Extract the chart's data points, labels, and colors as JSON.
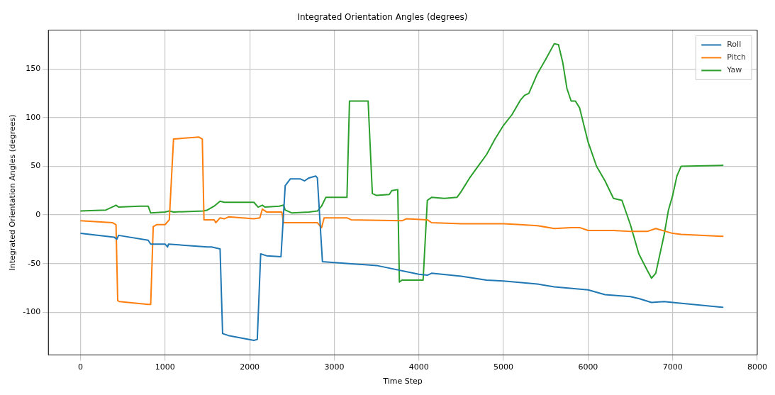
{
  "chart_data": {
    "type": "line",
    "title": "Integrated Orientation Angles (degrees)",
    "xlabel": "Time Step",
    "ylabel": "Integrated Orientation Angles (degrees)",
    "xlim": [
      -380,
      8000
    ],
    "xticks": [
      0,
      1000,
      2000,
      3000,
      4000,
      5000,
      6000,
      7000,
      8000
    ],
    "ylim": [
      -144,
      190
    ],
    "yticks": [
      -100,
      -50,
      0,
      50,
      100,
      150
    ],
    "grid": true,
    "legend": "top right",
    "marker": "none",
    "line_style": "solid",
    "series": [
      {
        "name": "Roll",
        "color": "#1f77b4",
        "x": [
          0,
          400,
          430,
          450,
          800,
          830,
          1000,
          1030,
          1040,
          1500,
          1550,
          1650,
          1680,
          1750,
          2050,
          2090,
          2130,
          2200,
          2370,
          2420,
          2480,
          2600,
          2650,
          2700,
          2780,
          2800,
          2860,
          3000,
          3500,
          4000,
          4100,
          4150,
          4500,
          4800,
          5000,
          5400,
          5600,
          6000,
          6200,
          6500,
          6600,
          6750,
          6900,
          7000,
          7600
        ],
        "values": [
          -19,
          -23,
          -25,
          -21,
          -26,
          -30,
          -30,
          -33,
          -30,
          -33,
          -33,
          -35,
          -122,
          -124,
          -129,
          -128,
          -40,
          -42,
          -43,
          30,
          37,
          37,
          35,
          38,
          40,
          38,
          -48,
          -49,
          -52,
          -61,
          -62,
          -60,
          -63,
          -67,
          -68,
          -71,
          -74,
          -77,
          -82,
          -84,
          -86,
          -90,
          -89,
          -90,
          -95
        ]
      },
      {
        "name": "Pitch",
        "color": "#ff7f0e",
        "x": [
          0,
          380,
          420,
          440,
          460,
          800,
          830,
          860,
          900,
          1000,
          1050,
          1100,
          1400,
          1440,
          1460,
          1580,
          1600,
          1650,
          1700,
          1750,
          2050,
          2120,
          2150,
          2200,
          2380,
          2400,
          2800,
          2850,
          2880,
          3150,
          3200,
          3800,
          3850,
          4100,
          4150,
          4500,
          5000,
          5200,
          5400,
          5600,
          5800,
          5900,
          6000,
          6300,
          6500,
          6700,
          6800,
          7000,
          7100,
          7600
        ],
        "values": [
          -6,
          -8,
          -10,
          -88,
          -89,
          -92,
          -92,
          -12,
          -10,
          -10,
          -5,
          78,
          80,
          78,
          -5,
          -5,
          -8,
          -3,
          -4,
          -2,
          -4,
          -3,
          6,
          3,
          3,
          -8,
          -8,
          -13,
          -3,
          -3,
          -5,
          -6,
          -4,
          -5,
          -8,
          -9,
          -9,
          -10,
          -11,
          -14,
          -13,
          -13,
          -16,
          -16,
          -17,
          -17,
          -14,
          -19,
          -20,
          -22
        ]
      },
      {
        "name": "Yaw",
        "color": "#2ca02c",
        "x": [
          0,
          300,
          400,
          420,
          450,
          700,
          800,
          830,
          1000,
          1050,
          1100,
          1450,
          1500,
          1580,
          1650,
          1700,
          2050,
          2100,
          2150,
          2180,
          2350,
          2400,
          2420,
          2500,
          2700,
          2800,
          2850,
          2900,
          3150,
          3180,
          3400,
          3450,
          3500,
          3650,
          3680,
          3750,
          3770,
          3800,
          4050,
          4100,
          4150,
          4300,
          4450,
          4500,
          4600,
          4700,
          4800,
          4900,
          5000,
          5100,
          5200,
          5250,
          5300,
          5400,
          5500,
          5600,
          5650,
          5700,
          5750,
          5800,
          5850,
          5900,
          6000,
          6100,
          6200,
          6300,
          6400,
          6500,
          6600,
          6700,
          6750,
          6800,
          6900,
          6950,
          7000,
          7050,
          7100,
          7600
        ],
        "values": [
          4,
          5,
          9,
          10,
          8,
          9,
          9,
          2,
          3,
          4,
          3,
          4,
          5,
          9,
          14,
          13,
          13,
          8,
          10,
          8,
          9,
          10,
          5,
          2,
          3,
          4,
          9,
          18,
          18,
          117,
          117,
          22,
          20,
          21,
          25,
          26,
          -69,
          -67,
          -67,
          15,
          18,
          17,
          18,
          24,
          38,
          50,
          62,
          78,
          92,
          103,
          118,
          123,
          125,
          145,
          160,
          176,
          175,
          157,
          130,
          117,
          117,
          110,
          75,
          50,
          35,
          17,
          15,
          -10,
          -40,
          -57,
          -65,
          -60,
          -20,
          5,
          20,
          40,
          50,
          51
        ]
      }
    ]
  }
}
